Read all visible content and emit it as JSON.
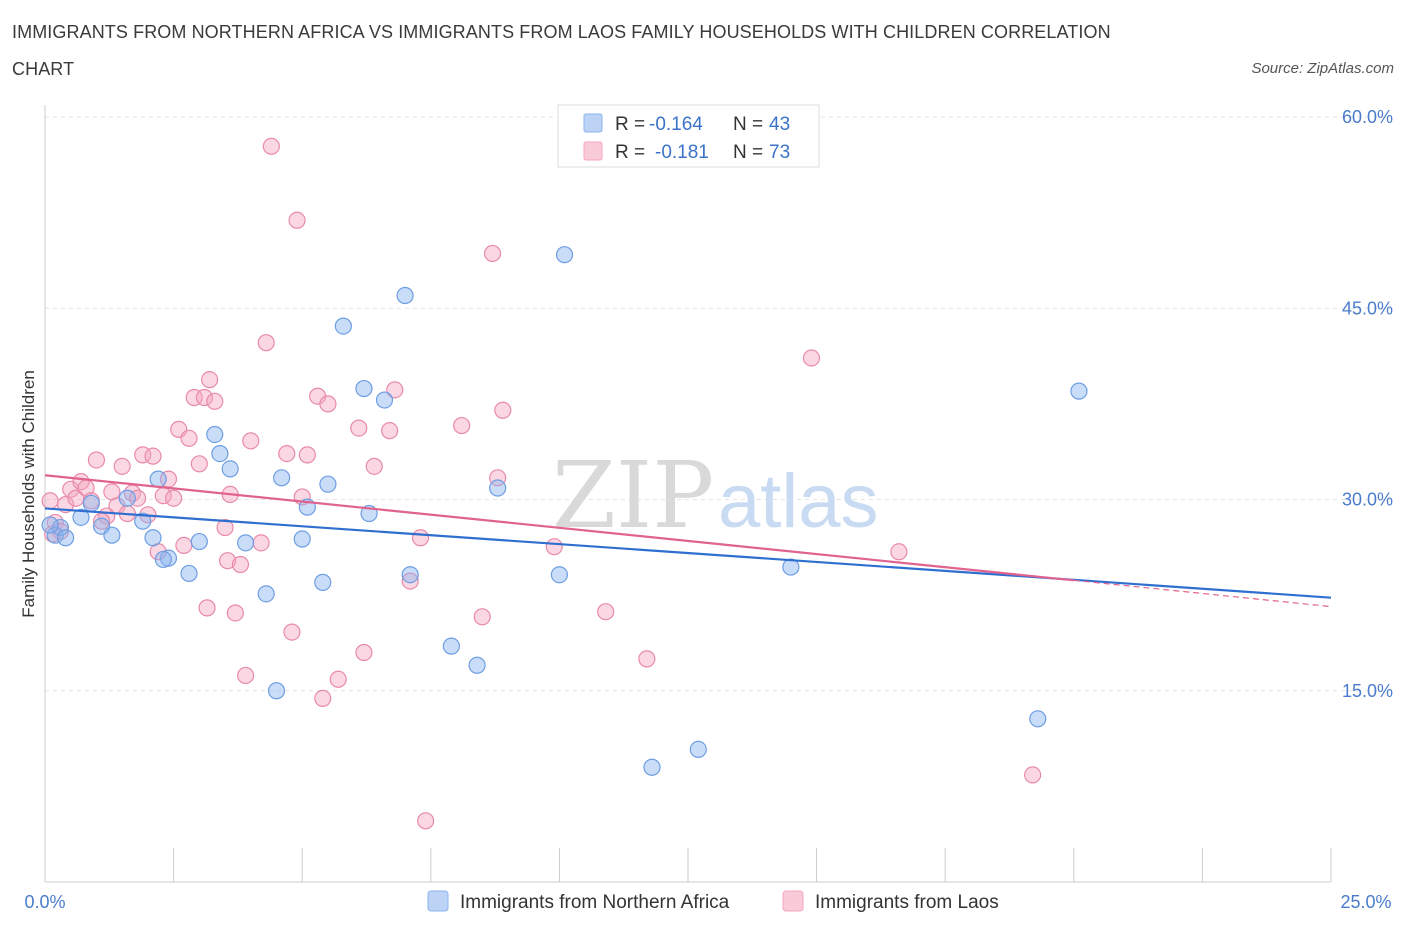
{
  "header": {
    "title": "IMMIGRANTS FROM NORTHERN AFRICA VS IMMIGRANTS FROM LAOS FAMILY HOUSEHOLDS WITH CHILDREN CORRELATION CHART",
    "source": "Source: ZipAtlas.com"
  },
  "watermark": {
    "zip": "ZIP",
    "atlas": "atlas"
  },
  "legend": {
    "r_label": "R =",
    "n_label": "N =",
    "series1": {
      "r": "-0.164",
      "n": "43"
    },
    "series2": {
      "r": "-0.181",
      "n": "73"
    }
  },
  "chart_data": {
    "type": "scatter",
    "title": "IMMIGRANTS FROM NORTHERN AFRICA VS IMMIGRANTS FROM LAOS FAMILY HOUSEHOLDS WITH CHILDREN CORRELATION CHART",
    "xlabel": "",
    "ylabel": "Family Households with Children",
    "xlim": [
      0,
      25
    ],
    "ylim": [
      0,
      60
    ],
    "x_tick_labels": [
      "0.0%",
      "25.0%"
    ],
    "y_ticks": [
      15,
      30,
      45,
      60
    ],
    "y_tick_labels": [
      "15.0%",
      "30.0%",
      "45.0%",
      "60.0%"
    ],
    "colors": {
      "series1": "#8ab4ef",
      "series2": "#f4a7bf",
      "line1": "#2f6fd0",
      "line2": "#e0628f"
    },
    "series": [
      {
        "name": "Immigrants from Northern Africa",
        "trend": {
          "x": [
            0,
            25
          ],
          "y": [
            29.3,
            22.3
          ]
        },
        "points": [
          [
            0.2,
            27.2
          ],
          [
            0.3,
            27.8
          ],
          [
            0.4,
            27.0
          ],
          [
            0.7,
            28.6
          ],
          [
            0.9,
            29.7
          ],
          [
            1.1,
            27.9
          ],
          [
            1.3,
            27.2
          ],
          [
            1.6,
            30.1
          ],
          [
            1.9,
            28.3
          ],
          [
            2.1,
            27.0
          ],
          [
            2.2,
            31.6
          ],
          [
            2.4,
            25.4
          ],
          [
            2.8,
            24.2
          ],
          [
            3.0,
            26.7
          ],
          [
            3.3,
            35.1
          ],
          [
            3.4,
            33.6
          ],
          [
            3.6,
            32.4
          ],
          [
            3.9,
            26.6
          ],
          [
            4.3,
            22.6
          ],
          [
            4.5,
            15.0
          ],
          [
            4.6,
            31.7
          ],
          [
            5.0,
            26.9
          ],
          [
            5.1,
            29.4
          ],
          [
            5.4,
            23.5
          ],
          [
            5.5,
            31.2
          ],
          [
            5.8,
            43.6
          ],
          [
            6.2,
            38.7
          ],
          [
            6.3,
            28.9
          ],
          [
            6.6,
            37.8
          ],
          [
            7.0,
            46.0
          ],
          [
            7.1,
            24.1
          ],
          [
            7.9,
            18.5
          ],
          [
            8.4,
            17.0
          ],
          [
            8.8,
            30.9
          ],
          [
            10.0,
            24.1
          ],
          [
            10.1,
            49.2
          ],
          [
            11.8,
            9.0
          ],
          [
            12.7,
            10.4
          ],
          [
            14.5,
            24.7
          ],
          [
            19.3,
            12.8
          ],
          [
            20.1,
            38.5
          ],
          [
            0.1,
            28.0
          ],
          [
            2.3,
            25.3
          ]
        ]
      },
      {
        "name": "Immigrants from Laos",
        "trend": {
          "x": [
            0,
            25
          ],
          "y": [
            31.9,
            21.6
          ]
        },
        "points": [
          [
            0.1,
            29.9
          ],
          [
            0.2,
            28.2
          ],
          [
            0.3,
            27.5
          ],
          [
            0.4,
            29.6
          ],
          [
            0.5,
            30.8
          ],
          [
            0.6,
            30.1
          ],
          [
            0.7,
            31.4
          ],
          [
            0.8,
            30.9
          ],
          [
            0.9,
            29.9
          ],
          [
            1.0,
            33.1
          ],
          [
            1.2,
            28.7
          ],
          [
            1.3,
            30.6
          ],
          [
            1.4,
            29.5
          ],
          [
            1.5,
            32.6
          ],
          [
            1.6,
            28.9
          ],
          [
            1.7,
            30.5
          ],
          [
            1.8,
            30.1
          ],
          [
            1.9,
            33.5
          ],
          [
            2.0,
            28.8
          ],
          [
            2.1,
            33.4
          ],
          [
            2.2,
            25.9
          ],
          [
            2.3,
            30.3
          ],
          [
            2.4,
            31.6
          ],
          [
            2.5,
            30.1
          ],
          [
            2.6,
            35.5
          ],
          [
            2.7,
            26.4
          ],
          [
            2.8,
            34.8
          ],
          [
            2.9,
            38.0
          ],
          [
            3.0,
            32.8
          ],
          [
            3.1,
            38.0
          ],
          [
            3.15,
            21.5
          ],
          [
            3.2,
            39.4
          ],
          [
            3.3,
            37.7
          ],
          [
            3.5,
            27.8
          ],
          [
            3.55,
            25.2
          ],
          [
            3.6,
            30.4
          ],
          [
            3.7,
            21.1
          ],
          [
            3.8,
            24.9
          ],
          [
            3.9,
            16.2
          ],
          [
            4.0,
            34.6
          ],
          [
            4.2,
            26.6
          ],
          [
            4.3,
            42.3
          ],
          [
            4.4,
            57.7
          ],
          [
            4.7,
            33.6
          ],
          [
            4.8,
            19.6
          ],
          [
            4.9,
            51.9
          ],
          [
            5.0,
            30.2
          ],
          [
            5.1,
            33.5
          ],
          [
            5.3,
            38.1
          ],
          [
            5.4,
            14.4
          ],
          [
            5.5,
            37.5
          ],
          [
            5.7,
            15.9
          ],
          [
            6.1,
            35.6
          ],
          [
            6.2,
            18.0
          ],
          [
            6.4,
            32.6
          ],
          [
            6.7,
            35.4
          ],
          [
            6.8,
            38.6
          ],
          [
            7.1,
            23.6
          ],
          [
            7.3,
            27.0
          ],
          [
            7.4,
            4.8
          ],
          [
            8.1,
            35.8
          ],
          [
            8.5,
            20.8
          ],
          [
            8.8,
            31.7
          ],
          [
            8.9,
            37.0
          ],
          [
            8.7,
            49.3
          ],
          [
            9.9,
            26.3
          ],
          [
            10.9,
            21.2
          ],
          [
            11.7,
            17.5
          ],
          [
            14.9,
            41.1
          ],
          [
            16.6,
            25.9
          ],
          [
            19.2,
            8.4
          ],
          [
            0.15,
            27.3
          ],
          [
            1.1,
            28.3
          ]
        ]
      }
    ]
  },
  "bottom_legend": [
    {
      "label": "Immigrants from Northern Africa"
    },
    {
      "label": "Immigrants from Laos"
    }
  ]
}
